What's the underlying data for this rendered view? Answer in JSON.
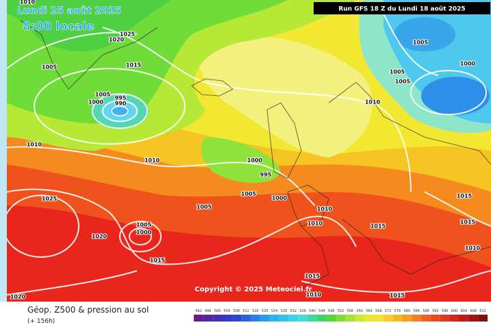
{
  "header": {
    "date": "Lundi 25 août 2025",
    "time": "8:00 locale",
    "run": "Run GFS 18 Z du Lundi 18 août 2025"
  },
  "isobars": [
    {
      "label": "1010"
    },
    {
      "label": "1025"
    },
    {
      "label": "1020"
    },
    {
      "label": "1005"
    },
    {
      "label": "1015"
    },
    {
      "label": "1005"
    },
    {
      "label": "995"
    },
    {
      "label": "990"
    },
    {
      "label": "1000"
    },
    {
      "label": "1010"
    },
    {
      "label": "1010"
    },
    {
      "label": "1000"
    },
    {
      "label": "995"
    },
    {
      "label": "1025"
    },
    {
      "label": "1005"
    },
    {
      "label": "1005"
    },
    {
      "label": "1000"
    },
    {
      "label": "1005"
    },
    {
      "label": "1000"
    },
    {
      "label": "1020"
    },
    {
      "label": "1015"
    },
    {
      "label": "1005"
    },
    {
      "label": "1005"
    },
    {
      "label": "1005"
    },
    {
      "label": "1000"
    },
    {
      "label": "1010"
    },
    {
      "label": "1010"
    },
    {
      "label": "1010"
    },
    {
      "label": "1015"
    },
    {
      "label": "1015"
    },
    {
      "label": "1015"
    },
    {
      "label": "1010"
    },
    {
      "label": "1015"
    },
    {
      "label": "1010"
    },
    {
      "label": "1015"
    },
    {
      "label": "1020"
    }
  ],
  "copyright": "Copyright © 2025 Meteociel.fr",
  "legend": {
    "title": "Géop. Z500 & pression au sol",
    "subtitle": "(+ 156h)",
    "scale": [
      "492",
      "496",
      "500",
      "504",
      "508",
      "512",
      "516",
      "520",
      "524",
      "528",
      "532",
      "536",
      "540",
      "544",
      "548",
      "552",
      "556",
      "560",
      "564",
      "568",
      "572",
      "576",
      "580",
      "584",
      "588",
      "592",
      "596",
      "600",
      "604",
      "608",
      "612"
    ]
  }
}
